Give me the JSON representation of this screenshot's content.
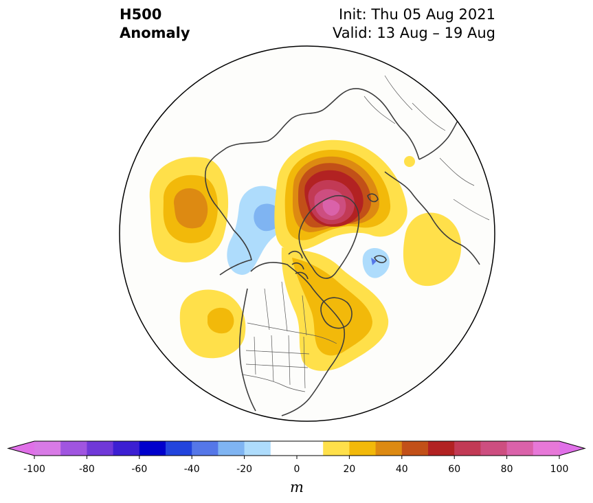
{
  "title": {
    "variable": "H500",
    "subtitle": "Anomaly",
    "init": "Init: Thu 05 Aug 2021",
    "valid": "Valid: 13 Aug – 19 Aug"
  },
  "map": {
    "projection": "north-polar-stereographic",
    "region": "Northern Hemisphere",
    "ocean_color": "#fdfdfb",
    "coastline_color": "#3c3c3c"
  },
  "colorbar": {
    "unit_label": "m",
    "tick_labels": [
      "-100",
      "-80",
      "-60",
      "-40",
      "-20",
      "0",
      "20",
      "40",
      "60",
      "80",
      "100"
    ],
    "ticks": [
      -100,
      -80,
      -60,
      -40,
      -20,
      0,
      20,
      40,
      60,
      80,
      100
    ],
    "levels": [
      -100,
      -90,
      -80,
      -70,
      -60,
      -50,
      -40,
      -30,
      -20,
      -10,
      10,
      20,
      30,
      40,
      50,
      60,
      70,
      80,
      90,
      100
    ],
    "colors": [
      "#d87ae6",
      "#a055e0",
      "#7038d8",
      "#3c1fd2",
      "#0000cc",
      "#2244dd",
      "#5577e8",
      "#7fb4f2",
      "#aedcfc",
      "#ffffff",
      "#ffe04a",
      "#f2b90a",
      "#dd8a12",
      "#c25018",
      "#b22222",
      "#c23a55",
      "#cd4e80",
      "#da62aa",
      "#e778d8"
    ],
    "extend_low": "#e070e8",
    "extend_high": "#e070e8"
  },
  "anomalies": [
    {
      "name": "north-pacific-ridge",
      "levels": [
        10,
        20,
        30
      ]
    },
    {
      "name": "alaska-trough",
      "levels": [
        -10,
        -20,
        -30
      ]
    },
    {
      "name": "arctic-greenland-ridge",
      "levels": [
        10,
        20,
        30,
        40,
        50,
        60,
        70,
        80
      ]
    },
    {
      "name": "hudson-bay-ridge",
      "levels": [
        10,
        20
      ]
    },
    {
      "name": "subtropical-pacific-ridge",
      "levels": [
        10,
        20
      ]
    },
    {
      "name": "north-atlantic-trough",
      "levels": [
        -10,
        -20
      ]
    },
    {
      "name": "europe-ridge",
      "levels": [
        10
      ]
    },
    {
      "name": "eastern-europe-ridge",
      "levels": [
        10
      ]
    }
  ]
}
